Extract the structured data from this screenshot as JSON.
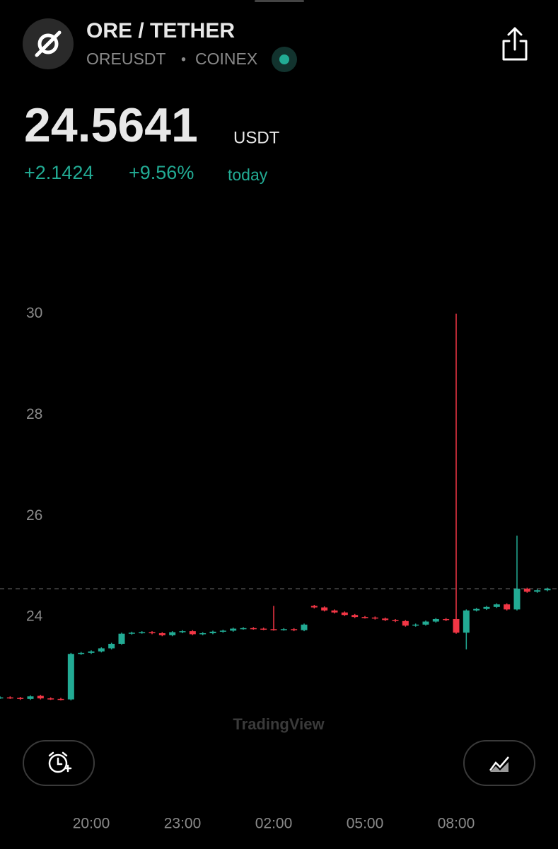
{
  "header": {
    "title": "ORE / TETHER",
    "symbol": "OREUSDT",
    "separator": "•",
    "exchange": "COINEX"
  },
  "quote": {
    "price": "24.5641",
    "currency": "USDT",
    "change": "+2.1424",
    "change_percent": "+9.56%",
    "period": "today"
  },
  "watermark": "TradingView",
  "chart_data": {
    "type": "candlestick",
    "categories": [
      null,
      null,
      null,
      null,
      null,
      null,
      null,
      null,
      null,
      "20:00",
      null,
      null,
      null,
      null,
      null,
      null,
      null,
      null,
      "23:00",
      null,
      null,
      null,
      null,
      null,
      null,
      null,
      null,
      "02:00",
      null,
      null,
      null,
      null,
      null,
      null,
      null,
      null,
      "05:00",
      null,
      null,
      null,
      null,
      null,
      null,
      null,
      null,
      "08:00",
      null,
      null,
      null,
      null,
      null,
      null,
      null,
      null,
      null
    ],
    "open": [
      22.4,
      22.41,
      22.4,
      22.38,
      22.44,
      22.39,
      22.38,
      22.37,
      23.27,
      23.29,
      23.32,
      23.38,
      23.47,
      23.67,
      23.69,
      23.7,
      23.68,
      23.64,
      23.7,
      23.72,
      23.66,
      23.68,
      23.71,
      23.73,
      23.77,
      23.78,
      23.77,
      23.76,
      23.75,
      23.76,
      23.74,
      24.22,
      24.19,
      24.13,
      24.09,
      24.04,
      24.0,
      23.99,
      23.97,
      23.94,
      23.92,
      23.83,
      23.85,
      23.91,
      23.96,
      23.96,
      23.69,
      24.13,
      24.16,
      24.2,
      24.25,
      24.15,
      24.56,
      24.5,
      24.53
    ],
    "high": [
      22.43,
      22.43,
      22.42,
      22.45,
      22.46,
      22.41,
      22.4,
      23.29,
      23.31,
      23.34,
      23.4,
      23.49,
      23.69,
      23.71,
      23.72,
      23.72,
      23.7,
      23.72,
      23.74,
      23.74,
      23.7,
      23.73,
      23.75,
      23.79,
      23.8,
      23.8,
      23.79,
      24.22,
      23.78,
      23.78,
      23.87,
      24.24,
      24.21,
      24.15,
      24.11,
      24.06,
      24.02,
      24.01,
      23.99,
      23.96,
      23.94,
      23.87,
      23.93,
      23.98,
      23.98,
      30.0,
      24.15,
      24.18,
      24.22,
      24.27,
      24.27,
      25.61,
      24.58,
      24.55,
      24.58
    ],
    "low": [
      22.38,
      22.38,
      22.36,
      22.36,
      22.37,
      22.36,
      22.35,
      22.35,
      23.25,
      23.27,
      23.3,
      23.36,
      23.45,
      23.65,
      23.67,
      23.66,
      23.62,
      23.62,
      23.68,
      23.64,
      23.64,
      23.66,
      23.69,
      23.71,
      23.75,
      23.75,
      23.74,
      23.73,
      23.73,
      23.72,
      23.72,
      24.17,
      24.11,
      24.07,
      24.02,
      23.98,
      23.97,
      23.95,
      23.92,
      23.9,
      23.81,
      23.81,
      23.83,
      23.89,
      23.92,
      23.67,
      23.36,
      24.11,
      24.14,
      24.18,
      24.13,
      24.13,
      24.48,
      24.48,
      24.51
    ],
    "close": [
      22.41,
      22.4,
      22.38,
      22.43,
      22.39,
      22.38,
      22.37,
      23.27,
      23.29,
      23.32,
      23.38,
      23.47,
      23.67,
      23.69,
      23.7,
      23.68,
      23.64,
      23.7,
      23.72,
      23.66,
      23.68,
      23.71,
      23.73,
      23.77,
      23.78,
      23.77,
      23.76,
      23.75,
      23.76,
      23.74,
      23.85,
      24.19,
      24.13,
      24.09,
      24.04,
      24.0,
      23.99,
      23.97,
      23.94,
      23.92,
      23.83,
      23.85,
      23.91,
      23.96,
      23.94,
      23.69,
      24.13,
      24.16,
      24.2,
      24.25,
      24.15,
      24.56,
      24.5,
      24.53,
      24.56
    ],
    "up_color": "#22ab94",
    "down_color": "#f23645",
    "ylim": [
      22,
      31
    ],
    "yticks": [
      24,
      26,
      28,
      30
    ],
    "last_price_line": true
  }
}
